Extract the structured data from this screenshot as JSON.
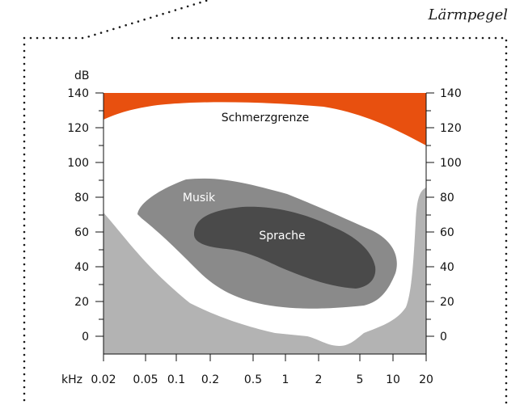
{
  "caption": "Lärmpegel",
  "axes": {
    "y_unit": "dB",
    "x_unit": "kHz",
    "y_ticks": [
      "140",
      "120",
      "100",
      "80",
      "60",
      "40",
      "20",
      "0"
    ],
    "y_ticks_right": [
      "140",
      "120",
      "100",
      "80",
      "60",
      "40",
      "20",
      "0"
    ],
    "x_ticks": [
      "0.02",
      "0.05",
      "0.1",
      "0.2",
      "0.5",
      "1",
      "2",
      "5",
      "10",
      "20"
    ]
  },
  "regions": {
    "pain": {
      "label": "Schmerzgrenze",
      "color": "#e8500f"
    },
    "music": {
      "label": "Musik",
      "color": "#8a8a8a"
    },
    "speech": {
      "label": "Sprache",
      "color": "#4a4a4a"
    },
    "threshold": {
      "color": "#b3b3b3"
    }
  }
}
